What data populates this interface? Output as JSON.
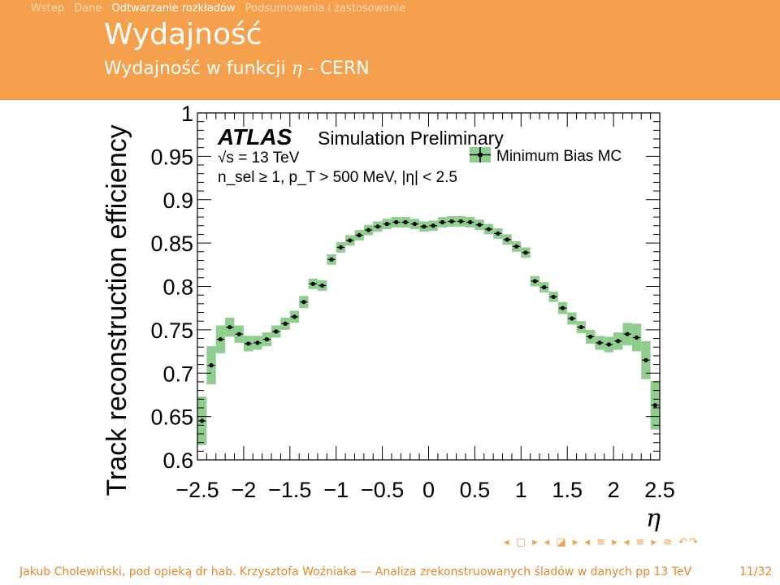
{
  "nav": {
    "items": [
      {
        "label": "Wstep",
        "active": false
      },
      {
        "label": "Dane",
        "active": false
      },
      {
        "label": "Odtwarzanie rozkładów",
        "active": true
      },
      {
        "label": "Podsumowania i zastosowanie",
        "active": false
      }
    ]
  },
  "slide": {
    "title": "Wydajność",
    "subtitle_prefix": "Wydajność w funkcji",
    "subtitle_symbol": "η",
    "subtitle_suffix": "- CERN"
  },
  "chart_data": {
    "type": "scatter",
    "ylabel": "Track reconstruction efficiency",
    "xlabel": "η",
    "xlim": [
      -2.5,
      2.5
    ],
    "ylim": [
      0.6,
      1.0
    ],
    "xticks": [
      "−2.5",
      "−2",
      "−1.5",
      "−1",
      "−0.5",
      "0",
      "0.5",
      "1",
      "1.5",
      "2",
      "2.5"
    ],
    "yticks": [
      "0.6",
      "0.65",
      "0.7",
      "0.75",
      "0.8",
      "0.85",
      "0.9",
      "0.95",
      "1"
    ],
    "annotations": {
      "atlas": "ATLAS",
      "label": "Simulation Preliminary",
      "energy": "√s = 13 TeV",
      "selection": "n_sel ≥ 1, p_T > 500 MeV, |η| < 2.5"
    },
    "legend": {
      "position": "top-right",
      "entries": [
        "Minimum Bias MC"
      ]
    },
    "series": [
      {
        "name": "Minimum Bias MC",
        "color": "#000000",
        "band_color": "#8fce8f",
        "x": [
          -2.45,
          -2.35,
          -2.25,
          -2.15,
          -2.05,
          -1.95,
          -1.85,
          -1.75,
          -1.65,
          -1.55,
          -1.45,
          -1.35,
          -1.25,
          -1.15,
          -1.05,
          -0.95,
          -0.85,
          -0.75,
          -0.65,
          -0.55,
          -0.45,
          -0.35,
          -0.25,
          -0.15,
          -0.05,
          0.05,
          0.15,
          0.25,
          0.35,
          0.45,
          0.55,
          0.65,
          0.75,
          0.85,
          0.95,
          1.05,
          1.15,
          1.25,
          1.35,
          1.45,
          1.55,
          1.65,
          1.75,
          1.85,
          1.95,
          2.05,
          2.15,
          2.25,
          2.35,
          2.45
        ],
        "y": [
          0.645,
          0.709,
          0.739,
          0.753,
          0.745,
          0.734,
          0.735,
          0.739,
          0.748,
          0.757,
          0.765,
          0.782,
          0.803,
          0.801,
          0.831,
          0.845,
          0.853,
          0.859,
          0.865,
          0.869,
          0.872,
          0.874,
          0.874,
          0.872,
          0.869,
          0.87,
          0.874,
          0.875,
          0.875,
          0.874,
          0.871,
          0.866,
          0.861,
          0.854,
          0.846,
          0.839,
          0.806,
          0.799,
          0.788,
          0.775,
          0.763,
          0.753,
          0.742,
          0.735,
          0.733,
          0.737,
          0.745,
          0.741,
          0.715,
          0.663
        ],
        "err": [
          0.028,
          0.022,
          0.016,
          0.011,
          0.01,
          0.009,
          0.008,
          0.008,
          0.007,
          0.007,
          0.007,
          0.007,
          0.006,
          0.006,
          0.006,
          0.006,
          0.006,
          0.006,
          0.006,
          0.006,
          0.006,
          0.006,
          0.006,
          0.006,
          0.006,
          0.006,
          0.006,
          0.006,
          0.006,
          0.006,
          0.006,
          0.006,
          0.006,
          0.006,
          0.006,
          0.006,
          0.006,
          0.006,
          0.006,
          0.007,
          0.007,
          0.007,
          0.008,
          0.008,
          0.009,
          0.01,
          0.013,
          0.016,
          0.022,
          0.028
        ]
      }
    ]
  },
  "nav_symbols": "◂ ▢ ▸ ◂ ◪ ▸ ◂ ≡ ▸ ◂ ≡ ▸ ≡ ↶↷",
  "footer": {
    "text": "Jakub Cholewiński, pod opieką dr hab. Krzysztofa Woźniaka — Analiza zrekonstruowanych śladów w danych pp 13 TeV",
    "page": "11/32"
  }
}
